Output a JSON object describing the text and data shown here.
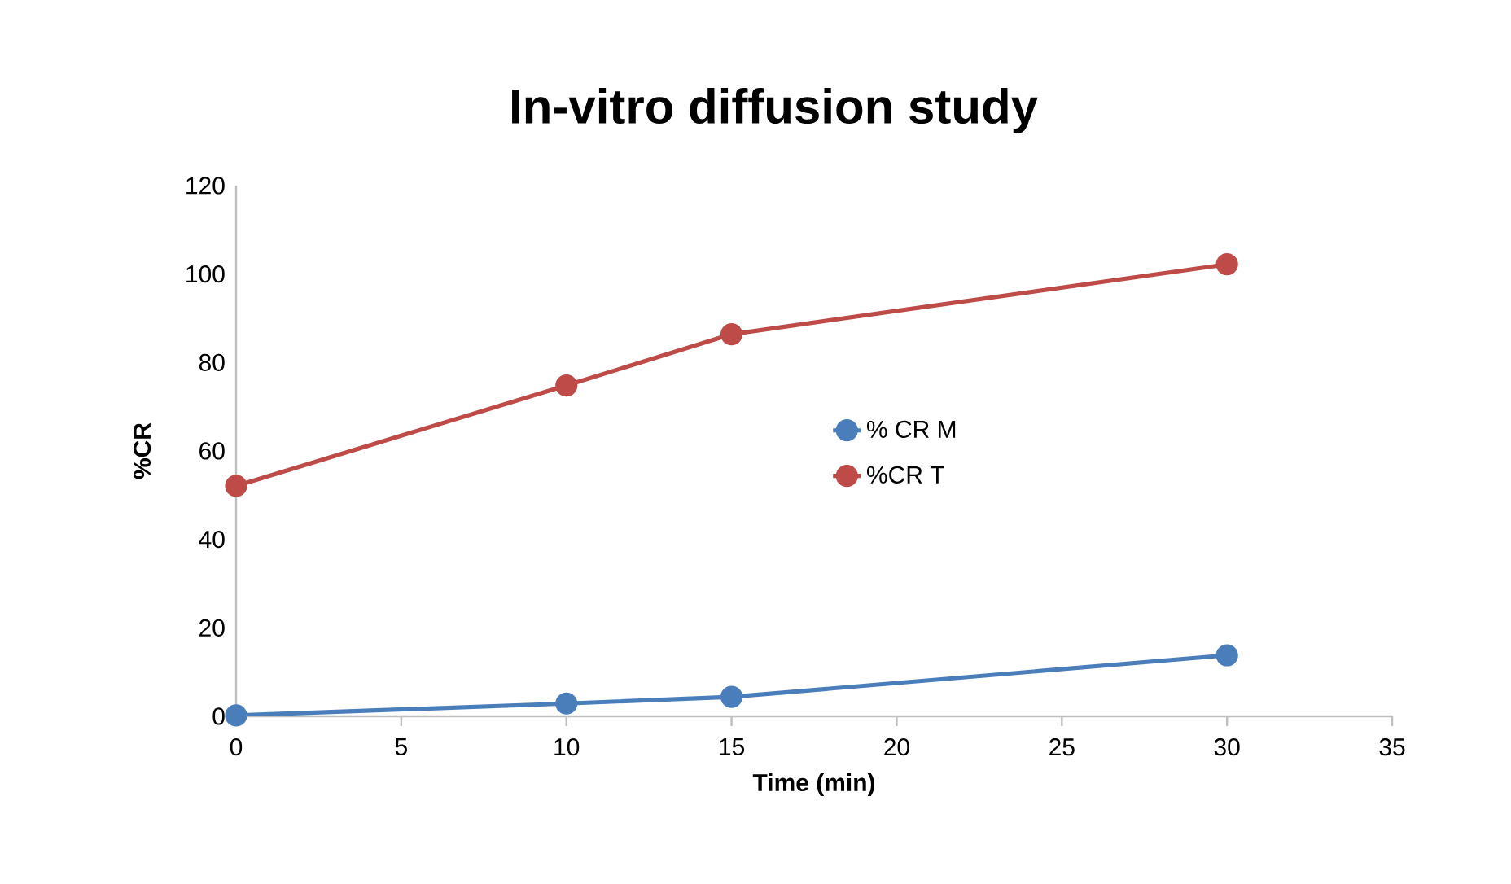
{
  "chart_data": {
    "type": "line",
    "title": "In-vitro diffusion study",
    "xlabel": "Time (min)",
    "ylabel": "%CR",
    "x": [
      0,
      10,
      15,
      30
    ],
    "series": [
      {
        "name": "% CR M",
        "color": "#4a7ebb",
        "values": [
          0.2,
          2.9,
          4.4,
          13.8
        ]
      },
      {
        "name": "%CR T",
        "color": "#be4b48",
        "values": [
          52.1,
          74.8,
          86.4,
          102.2
        ]
      }
    ],
    "xlim": [
      0,
      35
    ],
    "xticks": [
      0,
      5,
      10,
      15,
      20,
      25,
      30,
      35
    ],
    "ylim": [
      0,
      120
    ],
    "yticks": [
      0,
      20,
      40,
      60,
      80,
      100,
      120
    ],
    "grid": false,
    "legend": "right",
    "marker": "circle",
    "line_style": "solid"
  }
}
